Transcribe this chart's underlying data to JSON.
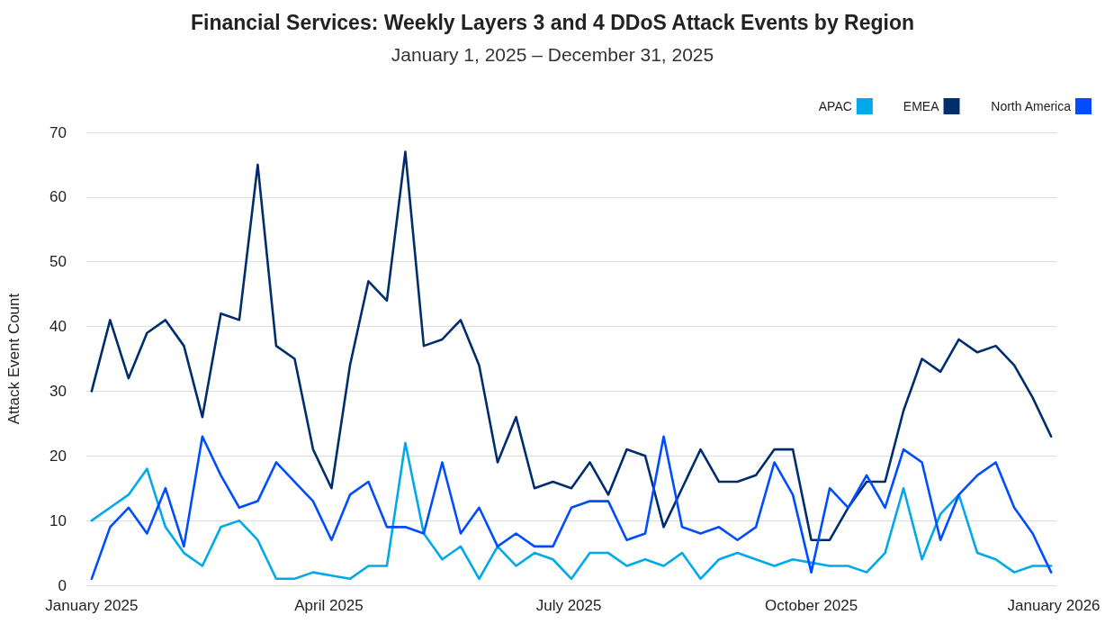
{
  "chart_data": {
    "type": "line",
    "title": "Financial Services: Weekly Layers 3 and 4 DDoS Attack Events by Region",
    "subtitle": "January 1, 2025 – December 31, 2025",
    "ylabel": "Attack Event Count",
    "x": [
      "2025-01-01",
      "2025-01-08",
      "2025-01-15",
      "2025-01-22",
      "2025-01-29",
      "2025-02-05",
      "2025-02-12",
      "2025-02-19",
      "2025-02-26",
      "2025-03-05",
      "2025-03-12",
      "2025-03-19",
      "2025-03-26",
      "2025-04-02",
      "2025-04-09",
      "2025-04-16",
      "2025-04-23",
      "2025-04-30",
      "2025-05-07",
      "2025-05-14",
      "2025-05-21",
      "2025-05-28",
      "2025-06-04",
      "2025-06-11",
      "2025-06-18",
      "2025-06-25",
      "2025-07-02",
      "2025-07-09",
      "2025-07-16",
      "2025-07-23",
      "2025-07-30",
      "2025-08-06",
      "2025-08-13",
      "2025-08-20",
      "2025-08-27",
      "2025-09-03",
      "2025-09-10",
      "2025-09-17",
      "2025-09-24",
      "2025-10-01",
      "2025-10-08",
      "2025-10-15",
      "2025-10-22",
      "2025-10-29",
      "2025-11-05",
      "2025-11-12",
      "2025-11-19",
      "2025-11-26",
      "2025-12-03",
      "2025-12-10",
      "2025-12-17",
      "2025-12-24",
      "2025-12-31"
    ],
    "series": [
      {
        "name": "APAC",
        "color": "#00a9e9",
        "values": [
          10,
          12,
          14,
          18,
          9,
          5,
          3,
          9,
          10,
          7,
          1,
          1,
          2,
          1.5,
          1,
          3,
          3,
          22,
          8,
          4,
          6,
          1,
          6,
          3,
          5,
          4,
          1,
          5,
          5,
          3,
          4,
          3,
          5,
          1,
          4,
          5,
          4,
          3,
          4,
          3.5,
          3,
          3,
          2,
          5,
          15,
          4,
          11,
          14,
          5,
          4,
          2,
          3,
          3
        ]
      },
      {
        "name": "EMEA",
        "color": "#002e6d",
        "values": [
          30,
          41,
          32,
          39,
          41,
          37,
          26,
          42,
          41,
          65,
          37,
          35,
          21,
          15,
          34,
          47,
          44,
          67,
          37,
          38,
          41,
          34,
          19,
          26,
          15,
          16,
          15,
          19,
          14,
          21,
          20,
          9,
          15,
          21,
          16,
          16,
          17,
          21,
          21,
          7,
          7,
          12,
          16,
          16,
          27,
          35,
          33,
          38,
          36,
          37,
          34,
          29,
          23
        ]
      },
      {
        "name": "North America",
        "color": "#004dff",
        "values": [
          1,
          9,
          12,
          8,
          15,
          6,
          23,
          17,
          12,
          13,
          19,
          16,
          13,
          7,
          14,
          16,
          9,
          9,
          8,
          19,
          8,
          12,
          6,
          8,
          6,
          6,
          12,
          13,
          13,
          7,
          8,
          23,
          9,
          8,
          9,
          7,
          9,
          19,
          14,
          2,
          15,
          12,
          17,
          12,
          21,
          19,
          7,
          14,
          17,
          19,
          12,
          8,
          2
        ]
      }
    ],
    "xlim": [
      "2024-12-30",
      "2026-01-02"
    ],
    "xticks": [
      {
        "value": "2025-01-01",
        "label": "January 2025"
      },
      {
        "value": "2025-04-01",
        "label": "April 2025"
      },
      {
        "value": "2025-07-01",
        "label": "July 2025"
      },
      {
        "value": "2025-10-01",
        "label": "October 2025"
      },
      {
        "value": "2026-01-01",
        "label": "January 2026"
      }
    ],
    "ylim": [
      0,
      70
    ],
    "yticks": [
      0,
      10,
      20,
      30,
      40,
      50,
      60,
      70
    ],
    "grid": "y",
    "legend": "top right",
    "marker": "none"
  }
}
